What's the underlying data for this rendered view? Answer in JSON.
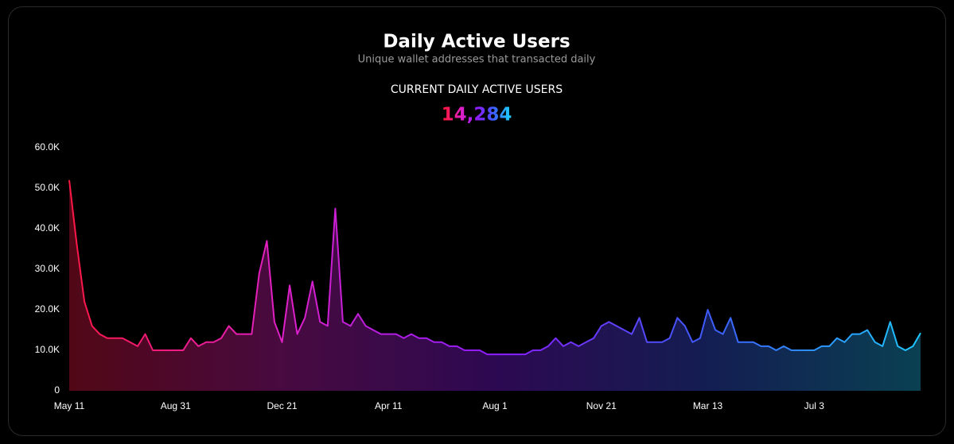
{
  "title": "Daily Active Users",
  "subtitle": "Unique wallet addresses that transacted daily",
  "kpi": {
    "label": "CURRENT DAILY ACTIVE USERS",
    "value": "14,284"
  },
  "chart_data": {
    "type": "area",
    "colors": [
      "#ff1744",
      "#e020c8",
      "#8c1cff",
      "#3d5cff",
      "#1ec8ff"
    ],
    "ylim": [
      0,
      60
    ],
    "yticks": [
      0,
      {
        "value": 10,
        "label": "10.0K"
      },
      {
        "value": 20,
        "label": "20.0K"
      },
      {
        "value": 30,
        "label": "30.0K"
      },
      {
        "value": 40,
        "label": "40.0K"
      },
      {
        "value": 50,
        "label": "50.0K"
      },
      {
        "value": 60,
        "label": "60.0K"
      }
    ],
    "grid": false,
    "categories": [
      "May 11",
      null,
      null,
      null,
      null,
      null,
      null,
      null,
      null,
      null,
      null,
      null,
      null,
      null,
      "Aug 31",
      null,
      null,
      null,
      null,
      null,
      null,
      null,
      null,
      null,
      null,
      null,
      null,
      null,
      "Dec 21",
      null,
      null,
      null,
      null,
      null,
      null,
      null,
      null,
      null,
      null,
      null,
      null,
      null,
      "Apr 11",
      null,
      null,
      null,
      null,
      null,
      null,
      null,
      null,
      null,
      null,
      null,
      null,
      null,
      "Aug 1",
      null,
      null,
      null,
      null,
      null,
      null,
      null,
      null,
      null,
      null,
      null,
      null,
      null,
      "Nov 21",
      null,
      null,
      null,
      null,
      null,
      null,
      null,
      null,
      null,
      null,
      null,
      null,
      null,
      "Mar 13",
      null,
      null,
      null,
      null,
      null,
      null,
      null,
      null,
      null,
      null,
      null,
      null,
      null,
      "Jul 3",
      null,
      null,
      null,
      null,
      null,
      null,
      null,
      null,
      null,
      null,
      null,
      null,
      null,
      null
    ],
    "series": [
      {
        "name": "Daily Active Users",
        "values": [
          52,
          36,
          22,
          16,
          14,
          13,
          13,
          13,
          12,
          11,
          14,
          10,
          10,
          10,
          10,
          10,
          13,
          11,
          12,
          12,
          13,
          16,
          14,
          14,
          14,
          29,
          37,
          17,
          12,
          26,
          14,
          18,
          27,
          17,
          16,
          45,
          17,
          16,
          19,
          16,
          15,
          14,
          14,
          14,
          13,
          14,
          13,
          13,
          12,
          12,
          11,
          11,
          10,
          10,
          10,
          9,
          9,
          9,
          9,
          9,
          9,
          10,
          10,
          11,
          13,
          11,
          12,
          11,
          12,
          13,
          16,
          17,
          16,
          15,
          14,
          18,
          12,
          12,
          12,
          13,
          18,
          16,
          12,
          13,
          20,
          15,
          14,
          18,
          12,
          12,
          12,
          11,
          11,
          10,
          11,
          10,
          10,
          10,
          10,
          11,
          11,
          13,
          12,
          14,
          14,
          15,
          12,
          11,
          17,
          11,
          10,
          11,
          14.284
        ]
      }
    ]
  }
}
